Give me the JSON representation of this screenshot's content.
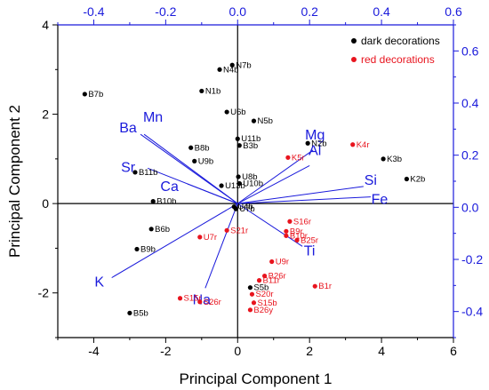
{
  "chart_data": {
    "type": "scatter",
    "title": "",
    "xlabel": "Principal Component 1",
    "ylabel": "Principal Component 2",
    "xlim": [
      -5,
      6
    ],
    "ylim": [
      -3,
      4
    ],
    "x_ticks": [
      "-4",
      "-2",
      "0",
      "2",
      "4",
      "6"
    ],
    "y_ticks": [
      "-2",
      "0",
      "2",
      "4"
    ],
    "top_axis": {
      "lim": [
        -0.5,
        0.6
      ],
      "ticks": [
        "-0.4",
        "-0.2",
        "0.0",
        "0.2",
        "0.4",
        "0.6"
      ],
      "color": "#1a1adb"
    },
    "right_axis": {
      "lim": [
        -0.5,
        0.7
      ],
      "ticks": [
        "-0.4",
        "-0.2",
        "0.0",
        "0.2",
        "0.4",
        "0.6"
      ],
      "color": "#1a1adb"
    },
    "legend_position": "top-right",
    "legend": [
      {
        "label": "dark decorations",
        "color": "#000000"
      },
      {
        "label": "red decorations",
        "color": "#e8141e"
      }
    ],
    "series": [
      {
        "name": "dark decorations",
        "color": "#000000",
        "points": [
          {
            "label": "N7b",
            "x": -0.15,
            "y": 3.1
          },
          {
            "label": "N4b",
            "x": -0.5,
            "y": 3.0
          },
          {
            "label": "B7b",
            "x": -4.25,
            "y": 2.45
          },
          {
            "label": "N1b",
            "x": -1.0,
            "y": 2.52
          },
          {
            "label": "U6b",
            "x": -0.3,
            "y": 2.05
          },
          {
            "label": "N5b",
            "x": 0.45,
            "y": 1.85
          },
          {
            "label": "U11b",
            "x": 0.0,
            "y": 1.45
          },
          {
            "label": "B3b",
            "x": 0.05,
            "y": 1.3
          },
          {
            "label": "N2b",
            "x": 1.95,
            "y": 1.35
          },
          {
            "label": "B8b",
            "x": -1.3,
            "y": 1.25
          },
          {
            "label": "U9b",
            "x": -1.2,
            "y": 0.95
          },
          {
            "label": "K3b",
            "x": 4.05,
            "y": 1.0
          },
          {
            "label": "B11b",
            "x": -2.85,
            "y": 0.7
          },
          {
            "label": "K2b",
            "x": 4.7,
            "y": 0.55
          },
          {
            "label": "U8b",
            "x": 0.02,
            "y": 0.6
          },
          {
            "label": "U10b",
            "x": 0.05,
            "y": 0.45
          },
          {
            "label": "U13b",
            "x": -0.45,
            "y": 0.4
          },
          {
            "label": "B10b",
            "x": -2.35,
            "y": 0.05
          },
          {
            "label": "U4b",
            "x": -0.1,
            "y": -0.07
          },
          {
            "label": "U7b",
            "x": -0.05,
            "y": -0.12
          },
          {
            "label": "B6b",
            "x": -2.4,
            "y": -0.57
          },
          {
            "label": "B9b",
            "x": -2.8,
            "y": -1.02
          },
          {
            "label": "S5b",
            "x": 0.35,
            "y": -1.88
          },
          {
            "label": "B5b",
            "x": -3.0,
            "y": -2.45
          }
        ]
      },
      {
        "name": "red decorations",
        "color": "#e8141e",
        "points": [
          {
            "label": "K4r",
            "x": 3.2,
            "y": 1.32
          },
          {
            "label": "K5r",
            "x": 1.4,
            "y": 1.03
          },
          {
            "label": "S21r",
            "x": -0.3,
            "y": -0.6
          },
          {
            "label": "U7r",
            "x": -1.05,
            "y": -0.75
          },
          {
            "label": "S16r",
            "x": 1.45,
            "y": -0.4
          },
          {
            "label": "B9r",
            "x": 1.35,
            "y": -0.62
          },
          {
            "label": "B10r",
            "x": 1.35,
            "y": -0.72
          },
          {
            "label": "B25r",
            "x": 1.65,
            "y": -0.82
          },
          {
            "label": "U9r",
            "x": 0.95,
            "y": -1.3
          },
          {
            "label": "B26r",
            "x": 0.75,
            "y": -1.62
          },
          {
            "label": "B11r",
            "x": 0.6,
            "y": -1.72
          },
          {
            "label": "B1r",
            "x": 2.15,
            "y": -1.85
          },
          {
            "label": "S15r",
            "x": -1.6,
            "y": -2.12
          },
          {
            "label": "S26r",
            "x": -1.05,
            "y": -2.2
          },
          {
            "label": "S20r",
            "x": 0.4,
            "y": -2.03
          },
          {
            "label": "S15b",
            "x": 0.45,
            "y": -2.22
          },
          {
            "label": "B26y",
            "x": 0.35,
            "y": -2.38
          }
        ]
      }
    ],
    "loadings": {
      "color": "#1a1adb",
      "vectors": [
        {
          "label": "Ba",
          "x": -0.27,
          "y": 0.28
        },
        {
          "label": "Mn",
          "x": -0.26,
          "y": 0.28
        },
        {
          "label": "Sr",
          "x": -0.25,
          "y": 0.15
        },
        {
          "label": "Ca",
          "x": -0.14,
          "y": 0.09
        },
        {
          "label": "Mg",
          "x": 0.21,
          "y": 0.22
        },
        {
          "label": "Al",
          "x": 0.2,
          "y": 0.16
        },
        {
          "label": "Si",
          "x": 0.35,
          "y": 0.08
        },
        {
          "label": "Fe",
          "x": 0.37,
          "y": 0.04
        },
        {
          "label": "Ti",
          "x": 0.18,
          "y": -0.15
        },
        {
          "label": "K",
          "x": -0.35,
          "y": -0.27
        },
        {
          "label": "Na",
          "x": -0.09,
          "y": -0.31
        }
      ]
    }
  }
}
